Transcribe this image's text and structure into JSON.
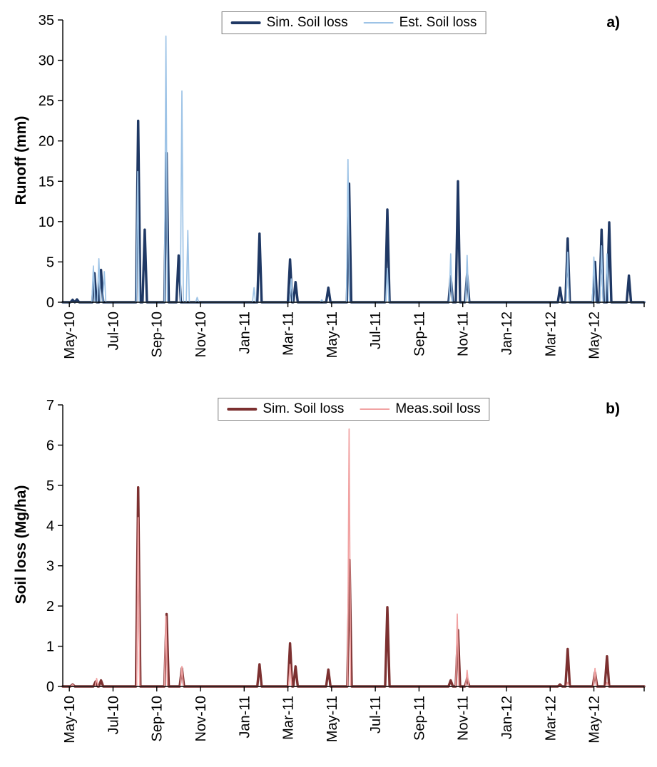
{
  "chart_data": [
    {
      "type": "line",
      "panel_label": "a)",
      "ylabel": "Runoff  (mm)",
      "xlabel": "",
      "ylim": [
        0,
        35
      ],
      "yticks": [
        0,
        5,
        10,
        15,
        20,
        25,
        30,
        35
      ],
      "xlim_months": [
        -0.3,
        26.3
      ],
      "grid": "off",
      "legend_position": "top-center",
      "xticks": [
        {
          "label": "May-10",
          "m": 0
        },
        {
          "label": "Jul-10",
          "m": 2
        },
        {
          "label": "Sep-10",
          "m": 4
        },
        {
          "label": "Nov-10",
          "m": 6
        },
        {
          "label": "Jan-11",
          "m": 8
        },
        {
          "label": "Mar-11",
          "m": 10
        },
        {
          "label": "May-11",
          "m": 12
        },
        {
          "label": "Jul-11",
          "m": 14
        },
        {
          "label": "Sep-11",
          "m": 16
        },
        {
          "label": "Nov-11",
          "m": 18
        },
        {
          "label": "Jan-12",
          "m": 20
        },
        {
          "label": "Mar-12",
          "m": 22
        },
        {
          "label": "May-12",
          "m": 24
        }
      ],
      "series": [
        {
          "name": "Sim. Soil loss",
          "color": "#1F3864",
          "stroke_width": 3.4,
          "peak_halfwidth": 0.1,
          "peaks": [
            [
              0.15,
              0.3
            ],
            [
              0.35,
              0.35
            ],
            [
              1.15,
              3.6
            ],
            [
              1.45,
              4.0
            ],
            [
              3.15,
              22.5
            ],
            [
              3.45,
              9.0
            ],
            [
              4.45,
              18.5
            ],
            [
              5.0,
              5.8
            ],
            [
              8.7,
              8.5
            ],
            [
              10.1,
              5.3
            ],
            [
              10.35,
              2.5
            ],
            [
              11.85,
              1.8
            ],
            [
              12.8,
              14.7
            ],
            [
              14.55,
              11.5
            ],
            [
              17.45,
              3.2
            ],
            [
              17.78,
              15.0
            ],
            [
              18.2,
              3.5
            ],
            [
              22.45,
              1.8
            ],
            [
              22.8,
              7.9
            ],
            [
              24.05,
              5.0
            ],
            [
              24.35,
              9.0
            ],
            [
              24.7,
              9.9
            ],
            [
              25.6,
              3.3
            ]
          ]
        },
        {
          "name": "Est. Soil loss",
          "color": "#9DC3E6",
          "stroke_width": 1.7,
          "peak_halfwidth": 0.07,
          "peaks": [
            [
              1.1,
              4.5
            ],
            [
              1.35,
              5.4
            ],
            [
              1.6,
              3.8
            ],
            [
              3.13,
              16.2
            ],
            [
              4.42,
              33.0
            ],
            [
              5.15,
              26.2
            ],
            [
              5.42,
              8.9
            ],
            [
              5.85,
              0.6
            ],
            [
              8.45,
              1.8
            ],
            [
              10.15,
              2.9
            ],
            [
              11.55,
              0.3
            ],
            [
              12.75,
              17.7
            ],
            [
              14.55,
              4.2
            ],
            [
              17.45,
              6.0
            ],
            [
              18.2,
              5.8
            ],
            [
              22.8,
              6.2
            ],
            [
              24.0,
              5.6
            ],
            [
              24.35,
              7.0
            ],
            [
              24.6,
              6.0
            ]
          ]
        }
      ]
    },
    {
      "type": "line",
      "panel_label": "b)",
      "ylabel": "Soil loss  (Mg/ha)",
      "xlabel": "",
      "ylim": [
        0,
        7
      ],
      "yticks": [
        0,
        1,
        2,
        3,
        4,
        5,
        6,
        7
      ],
      "xlim_months": [
        -0.3,
        26.3
      ],
      "grid": "off",
      "legend_position": "top-center",
      "xticks": [
        {
          "label": "May-10",
          "m": 0
        },
        {
          "label": "Jul-10",
          "m": 2
        },
        {
          "label": "Sep-10",
          "m": 4
        },
        {
          "label": "Nov-10",
          "m": 6
        },
        {
          "label": "Jan-11",
          "m": 8
        },
        {
          "label": "Mar-11",
          "m": 10
        },
        {
          "label": "May-11",
          "m": 12
        },
        {
          "label": "Jul-11",
          "m": 14
        },
        {
          "label": "Sep-11",
          "m": 16
        },
        {
          "label": "Nov-11",
          "m": 18
        },
        {
          "label": "Jan-12",
          "m": 20
        },
        {
          "label": "Mar-12",
          "m": 22
        },
        {
          "label": "May-12",
          "m": 24
        }
      ],
      "series": [
        {
          "name": "Sim. Soil loss",
          "color": "#7C3030",
          "stroke_width": 3.4,
          "peak_halfwidth": 0.1,
          "peaks": [
            [
              0.15,
              0.05
            ],
            [
              1.2,
              0.12
            ],
            [
              1.45,
              0.15
            ],
            [
              3.15,
              4.95
            ],
            [
              4.45,
              1.8
            ],
            [
              5.15,
              0.45
            ],
            [
              8.7,
              0.55
            ],
            [
              10.1,
              1.07
            ],
            [
              10.35,
              0.5
            ],
            [
              11.85,
              0.42
            ],
            [
              12.82,
              3.15
            ],
            [
              14.55,
              1.97
            ],
            [
              17.45,
              0.15
            ],
            [
              17.78,
              1.4
            ],
            [
              18.2,
              0.2
            ],
            [
              22.45,
              0.05
            ],
            [
              22.8,
              0.93
            ],
            [
              24.05,
              0.35
            ],
            [
              24.6,
              0.75
            ]
          ]
        },
        {
          "name": "Meas.soil loss",
          "color": "#F1A3A3",
          "stroke_width": 1.7,
          "peak_halfwidth": 0.07,
          "peaks": [
            [
              0.15,
              0.05
            ],
            [
              1.25,
              0.2
            ],
            [
              3.15,
              4.2
            ],
            [
              4.42,
              1.75
            ],
            [
              5.15,
              0.5
            ],
            [
              10.1,
              0.55
            ],
            [
              12.8,
              6.4
            ],
            [
              17.75,
              1.8
            ],
            [
              18.2,
              0.4
            ],
            [
              22.8,
              0.1
            ],
            [
              24.05,
              0.45
            ],
            [
              24.6,
              0.1
            ]
          ]
        }
      ]
    }
  ],
  "colors": {
    "axis": "#000000",
    "legend_border": "#7F7F7F",
    "background": "#FFFFFF"
  }
}
